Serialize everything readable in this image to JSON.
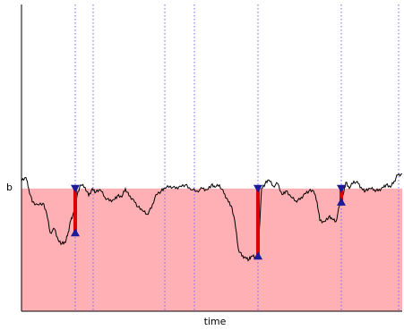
{
  "chart_data": {
    "type": "line",
    "xlabel": "time",
    "ylabel": "",
    "xlim": [
      0,
      425
    ],
    "ylim": [
      -100,
      150
    ],
    "barrier_label": "b",
    "barrier_value": 0,
    "grid": false,
    "series": [
      {
        "values": [
          [
            0,
            6
          ],
          [
            5,
            9
          ],
          [
            8,
            0
          ],
          [
            12,
            -11
          ],
          [
            18,
            -13
          ],
          [
            24,
            -12
          ],
          [
            28,
            -20
          ],
          [
            32,
            -36
          ],
          [
            37,
            -33
          ],
          [
            41,
            -42
          ],
          [
            45,
            -45
          ],
          [
            49,
            -44
          ],
          [
            52,
            -36
          ],
          [
            55,
            -26
          ],
          [
            58,
            -20
          ],
          [
            62,
            -6
          ],
          [
            66,
            3
          ],
          [
            71,
            1
          ],
          [
            75,
            -6
          ],
          [
            79,
            0
          ],
          [
            83,
            -3
          ],
          [
            88,
            -1
          ],
          [
            93,
            -7
          ],
          [
            98,
            -10
          ],
          [
            103,
            -9
          ],
          [
            107,
            -6
          ],
          [
            112,
            -7
          ],
          [
            116,
            0
          ],
          [
            120,
            -6
          ],
          [
            125,
            -9
          ],
          [
            130,
            -15
          ],
          [
            135,
            -18
          ],
          [
            140,
            -21
          ],
          [
            145,
            -16
          ],
          [
            150,
            -5
          ],
          [
            156,
            -2
          ],
          [
            160,
            0
          ],
          [
            166,
            2
          ],
          [
            172,
            0
          ],
          [
            177,
            2
          ],
          [
            183,
            3
          ],
          [
            189,
            -1
          ],
          [
            196,
            -2
          ],
          [
            202,
            0
          ],
          [
            207,
            -1
          ],
          [
            212,
            3
          ],
          [
            216,
            1
          ],
          [
            221,
            3
          ],
          [
            226,
            -4
          ],
          [
            230,
            -9
          ],
          [
            234,
            -14
          ],
          [
            238,
            -26
          ],
          [
            242,
            -49
          ],
          [
            246,
            -55
          ],
          [
            250,
            -56
          ],
          [
            254,
            -58
          ],
          [
            257,
            -55
          ],
          [
            261,
            -56
          ],
          [
            264,
            -54
          ],
          [
            268,
            0
          ],
          [
            272,
            4
          ],
          [
            276,
            7
          ],
          [
            281,
            2
          ],
          [
            286,
            4
          ],
          [
            291,
            -5
          ],
          [
            295,
            -2
          ],
          [
            301,
            -7
          ],
          [
            306,
            -10
          ],
          [
            311,
            -9
          ],
          [
            316,
            -4
          ],
          [
            321,
            -2
          ],
          [
            326,
            -2
          ],
          [
            330,
            -11
          ],
          [
            333,
            -26
          ],
          [
            338,
            -27
          ],
          [
            343,
            -23
          ],
          [
            347,
            -25
          ],
          [
            351,
            -27
          ],
          [
            355,
            -14
          ],
          [
            359,
            -5
          ],
          [
            362,
            5
          ],
          [
            366,
            0
          ],
          [
            371,
            6
          ],
          [
            376,
            4
          ],
          [
            380,
            0
          ],
          [
            384,
            -2
          ],
          [
            389,
            0
          ],
          [
            394,
            -1
          ],
          [
            398,
            -2
          ],
          [
            403,
            1
          ],
          [
            407,
            3
          ],
          [
            412,
            1
          ],
          [
            416,
            6
          ],
          [
            420,
            11
          ],
          [
            425,
            12
          ]
        ]
      }
    ],
    "vlines_dotted": [
      60,
      80,
      160,
      193,
      264,
      357,
      421
    ],
    "drawdowns": [
      {
        "x": 60,
        "top": 0,
        "bottom": -36
      },
      {
        "x": 264,
        "top": 0,
        "bottom": -55
      },
      {
        "x": 357,
        "top": 0,
        "bottom": -11
      }
    ],
    "colors": {
      "fill": "#ffb0b4",
      "line": "#000000",
      "vline": "#6a6aff",
      "drawdown": "#dd0000",
      "marker": "#1a1a9a"
    }
  }
}
